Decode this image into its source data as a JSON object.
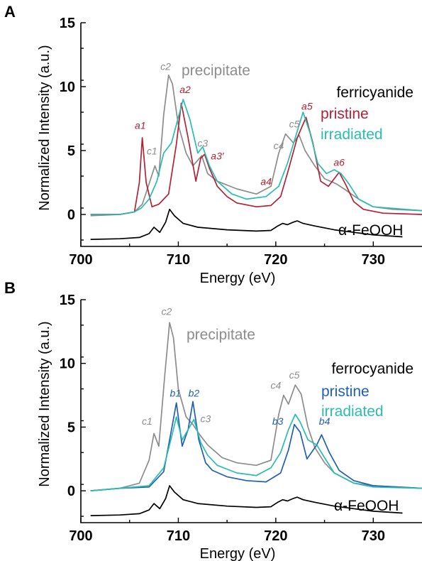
{
  "chart_data": [
    {
      "type": "line",
      "panel": "A",
      "xlabel": "Energy (eV)",
      "ylabel": "Normalized Intensity (a.u.)",
      "xlim": [
        700,
        735
      ],
      "ylim": [
        -2.5,
        15
      ],
      "xticks": [
        700,
        710,
        720,
        730
      ],
      "yticks": [
        0,
        5,
        10,
        15
      ],
      "grid": false,
      "series": [
        {
          "name": "α-FeOOH",
          "color": "#000000",
          "labelled": "right",
          "x": [
            701,
            704,
            706,
            707,
            707.5,
            708.1,
            708.7,
            709.1,
            709.6,
            710.5,
            712,
            715,
            718,
            719.5,
            720.2,
            720.7,
            721.2,
            721.8,
            722.2,
            722.8,
            724,
            726,
            728,
            730,
            733
          ],
          "y": [
            -1.95,
            -1.9,
            -1.8,
            -1.5,
            -1.0,
            -1.4,
            -0.6,
            0.4,
            -0.1,
            -0.7,
            -1.0,
            -1.2,
            -1.3,
            -1.25,
            -0.9,
            -0.7,
            -0.8,
            -0.6,
            -0.5,
            -0.7,
            -0.9,
            -1.2,
            -1.4,
            -1.6,
            -1.75
          ]
        },
        {
          "name": "precipitate",
          "color": "#8c8c8c",
          "x": [
            701,
            704,
            705.5,
            706.3,
            707,
            707.6,
            708,
            708.5,
            709,
            709.4,
            710,
            710.8,
            711.5,
            712.4,
            713,
            714,
            716,
            718,
            719.5,
            720.3,
            721,
            721.8,
            722.4,
            723,
            724,
            725,
            726.2,
            727,
            728.5,
            730,
            732,
            735
          ],
          "y": [
            -0.1,
            0,
            0.2,
            0.8,
            2.4,
            3.8,
            3.0,
            7.8,
            10.9,
            10.2,
            7.0,
            4.8,
            3.8,
            4.6,
            3.2,
            2.6,
            2.0,
            1.6,
            2.2,
            4.8,
            6.3,
            5.6,
            6.2,
            5.0,
            3.8,
            2.8,
            2.4,
            2.0,
            1.2,
            0.6,
            0.4,
            0.3
          ]
        },
        {
          "name": "ferricyanide",
          "color": "#000000",
          "legend_only": true,
          "x": [],
          "y": []
        },
        {
          "name": "pristine",
          "color": "#b22234",
          "x": [
            701,
            704,
            705.5,
            706,
            706.3,
            706.7,
            707.3,
            708,
            709,
            709.8,
            710.3,
            711,
            711.8,
            712.3,
            712.7,
            713.2,
            714,
            715,
            716,
            718,
            719.5,
            720.5,
            721.3,
            722.2,
            723.1,
            723.8,
            724.6,
            725.4,
            726,
            726.5,
            727.2,
            728,
            729,
            731,
            735
          ],
          "y": [
            0,
            0,
            0.2,
            2.5,
            6.0,
            2.5,
            0.6,
            0.8,
            1.6,
            5.5,
            8.7,
            6.0,
            2.6,
            4.4,
            4.7,
            3.6,
            2.2,
            1.4,
            0.9,
            0.6,
            0.7,
            1.4,
            3.5,
            6.0,
            7.6,
            5.6,
            2.6,
            2.2,
            2.8,
            3.3,
            2.3,
            1.0,
            0.4,
            0.1,
            0
          ]
        },
        {
          "name": "irradiated",
          "color": "#2bbcb0",
          "x": [
            701,
            704,
            705.5,
            706.2,
            707,
            707.8,
            708.5,
            709.3,
            710,
            710.5,
            711.2,
            712,
            712.5,
            713.2,
            714,
            715.5,
            717,
            719,
            720.3,
            721.2,
            722,
            722.8,
            723.5,
            724.3,
            725.2,
            726,
            726.7,
            727.5,
            728.5,
            730,
            735
          ],
          "y": [
            0,
            0,
            0.2,
            0.5,
            1.2,
            2.6,
            4.8,
            5.6,
            7.6,
            9.0,
            7.4,
            4.8,
            5.3,
            3.8,
            2.6,
            1.6,
            1.2,
            1.4,
            2.2,
            4.0,
            6.0,
            8.0,
            6.4,
            4.0,
            3.2,
            3.5,
            3.2,
            2.4,
            1.2,
            0.6,
            0.3
          ]
        }
      ],
      "annotations": [
        {
          "text": "a1",
          "color": "#b22234",
          "x": 706.1,
          "y": 6.7
        },
        {
          "text": "c1",
          "color": "#8c8c8c",
          "x": 707.3,
          "y": 4.7
        },
        {
          "text": "c2",
          "color": "#8c8c8c",
          "x": 708.7,
          "y": 11.3
        },
        {
          "text": "a2",
          "color": "#b22234",
          "x": 710.7,
          "y": 9.5
        },
        {
          "text": "c3",
          "color": "#8c8c8c",
          "x": 712.5,
          "y": 5.3
        },
        {
          "text": "a3′",
          "color": "#b22234",
          "x": 714.0,
          "y": 4.3
        },
        {
          "text": "a4",
          "color": "#b22234",
          "x": 719.0,
          "y": 2.3
        },
        {
          "text": "c4",
          "color": "#8c8c8c",
          "x": 720.3,
          "y": 5.1
        },
        {
          "text": "c5",
          "color": "#8c8c8c",
          "x": 721.9,
          "y": 6.8
        },
        {
          "text": "a5",
          "color": "#b22234",
          "x": 723.2,
          "y": 8.2
        },
        {
          "text": "a6",
          "color": "#b22234",
          "x": 726.5,
          "y": 3.8
        }
      ]
    },
    {
      "type": "line",
      "panel": "B",
      "xlabel": "Energy (eV)",
      "ylabel": "Normalized Intensity (a.u.)",
      "xlim": [
        700,
        735
      ],
      "ylim": [
        -2.5,
        15
      ],
      "xticks": [
        700,
        710,
        720,
        730
      ],
      "yticks": [
        0,
        5,
        10,
        15
      ],
      "grid": false,
      "series": [
        {
          "name": "α-FeOOH",
          "color": "#000000",
          "labelled": "right",
          "x": [
            701,
            704,
            706,
            707,
            707.5,
            708.1,
            708.7,
            709.1,
            709.6,
            710.5,
            712,
            715,
            718,
            719.5,
            720.2,
            720.7,
            721.2,
            721.8,
            722.2,
            722.8,
            724,
            726,
            728,
            730,
            733
          ],
          "y": [
            -1.95,
            -1.9,
            -1.8,
            -1.5,
            -1.0,
            -1.4,
            -0.6,
            0.4,
            -0.1,
            -0.7,
            -1.0,
            -1.2,
            -1.3,
            -1.25,
            -0.9,
            -0.7,
            -0.8,
            -0.6,
            -0.5,
            -0.7,
            -0.9,
            -1.2,
            -1.4,
            -1.6,
            -1.75
          ]
        },
        {
          "name": "precipitate",
          "color": "#8c8c8c",
          "x": [
            701,
            704,
            706,
            707,
            707.5,
            708,
            708.6,
            709.1,
            709.5,
            710,
            710.8,
            711.5,
            712.2,
            713,
            714.5,
            716,
            718,
            719.5,
            720.3,
            720.8,
            721.3,
            722,
            722.6,
            723.3,
            724,
            725,
            726,
            728,
            730,
            735
          ],
          "y": [
            0,
            0.2,
            0.6,
            2.4,
            4.5,
            3.5,
            9.0,
            13.2,
            12.0,
            8.0,
            5.8,
            5.2,
            4.4,
            3.6,
            2.6,
            2.2,
            2.0,
            2.4,
            6.0,
            7.5,
            6.8,
            8.3,
            7.6,
            5.0,
            3.4,
            2.2,
            1.4,
            0.6,
            0.4,
            0.2
          ]
        },
        {
          "name": "ferrocyanide",
          "color": "#000000",
          "legend_only": true,
          "x": [],
          "y": []
        },
        {
          "name": "pristine",
          "color": "#1f5fb4",
          "x": [
            701,
            704,
            707,
            708.5,
            709.3,
            709.8,
            710.4,
            711,
            711.5,
            712.1,
            712.8,
            713.5,
            715,
            717,
            719,
            720.5,
            721.3,
            721.9,
            722.5,
            723.2,
            724.2,
            724.7,
            725.5,
            726.5,
            728,
            730,
            735
          ],
          "y": [
            0,
            0.2,
            0.3,
            1.5,
            4.8,
            6.9,
            3.5,
            4.8,
            7.0,
            4.0,
            2.2,
            1.6,
            1.1,
            0.8,
            0.7,
            1.4,
            3.2,
            5.2,
            4.6,
            2.5,
            3.6,
            4.4,
            3.0,
            1.6,
            0.8,
            0.4,
            0.2
          ]
        },
        {
          "name": "irradiated",
          "color": "#2bbcb0",
          "x": [
            701,
            704,
            707,
            708.5,
            709.3,
            709.8,
            710.4,
            711,
            711.6,
            712.3,
            713,
            714,
            716,
            718,
            719.5,
            720.5,
            721.3,
            722,
            722.5,
            723.3,
            724.2,
            725,
            726,
            728,
            730,
            735
          ],
          "y": [
            0,
            0.2,
            0.4,
            1.8,
            4.2,
            5.8,
            4.0,
            4.8,
            5.6,
            3.8,
            2.8,
            2.0,
            1.4,
            1.2,
            1.8,
            3.0,
            4.8,
            6.0,
            5.4,
            4.0,
            3.6,
            2.6,
            1.4,
            0.6,
            0.3,
            0.2
          ]
        }
      ],
      "annotations": [
        {
          "text": "c1",
          "color": "#8c8c8c",
          "x": 706.8,
          "y": 5.2
        },
        {
          "text": "c2",
          "color": "#8c8c8c",
          "x": 708.8,
          "y": 13.8
        },
        {
          "text": "b1",
          "color": "#1f5fb4",
          "x": 709.7,
          "y": 7.4
        },
        {
          "text": "b2",
          "color": "#1f5fb4",
          "x": 711.6,
          "y": 7.4
        },
        {
          "text": "c3",
          "color": "#8c8c8c",
          "x": 712.8,
          "y": 5.4
        },
        {
          "text": "c4",
          "color": "#8c8c8c",
          "x": 720.0,
          "y": 8.0
        },
        {
          "text": "c5",
          "color": "#8c8c8c",
          "x": 721.9,
          "y": 8.8
        },
        {
          "text": "b3",
          "color": "#1f5fb4",
          "x": 720.2,
          "y": 5.2
        },
        {
          "text": "b4",
          "color": "#1f5fb4",
          "x": 725.0,
          "y": 5.2
        }
      ]
    }
  ],
  "panels": [
    {
      "letter": "A",
      "legend": [
        {
          "text": "precipitate",
          "color": "#8c8c8c"
        },
        {
          "text": "ferricyanide",
          "color": "#000000"
        },
        {
          "text": "pristine",
          "color": "#b22234"
        },
        {
          "text": "irradiated",
          "color": "#2bbcb0"
        }
      ],
      "reference_label": "α-FeOOH"
    },
    {
      "letter": "B",
      "legend": [
        {
          "text": "precipitate",
          "color": "#8c8c8c"
        },
        {
          "text": "ferrocyanide",
          "color": "#000000"
        },
        {
          "text": "pristine",
          "color": "#1f5fb4"
        },
        {
          "text": "irradiated",
          "color": "#2bbcb0"
        }
      ],
      "reference_label": "α-FeOOH"
    }
  ]
}
